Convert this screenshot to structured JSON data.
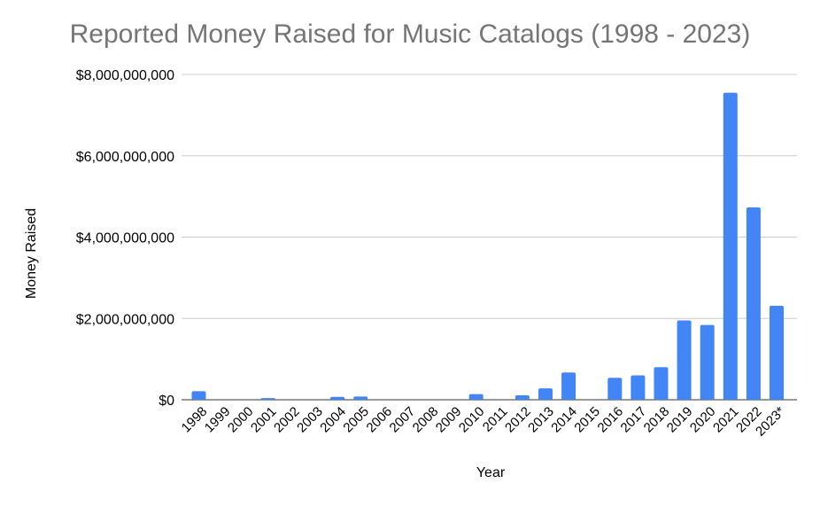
{
  "chart_data": {
    "type": "bar",
    "title": "Reported Money Raised for Music Catalogs (1998 - 2023)",
    "xlabel": "Year",
    "ylabel": "Money Raised",
    "categories": [
      "1998",
      "1999",
      "2000",
      "2001",
      "2002",
      "2003",
      "2004",
      "2005",
      "2006",
      "2007",
      "2008",
      "2009",
      "2010",
      "2011",
      "2012",
      "2013",
      "2014",
      "2015",
      "2016",
      "2017",
      "2018",
      "2019",
      "2020",
      "2021",
      "2022",
      "2023*"
    ],
    "values": [
      210000000,
      0,
      0,
      40000000,
      0,
      0,
      70000000,
      80000000,
      0,
      0,
      0,
      0,
      140000000,
      0,
      110000000,
      280000000,
      670000000,
      0,
      540000000,
      600000000,
      800000000,
      1950000000,
      1840000000,
      7550000000,
      4730000000,
      2310000000
    ],
    "ylim": [
      0,
      8000000000
    ],
    "yticks": [
      0,
      2000000000,
      4000000000,
      6000000000,
      8000000000
    ],
    "ytick_labels": [
      "$0",
      "$2,000,000,000",
      "$4,000,000,000",
      "$6,000,000,000",
      "$8,000,000,000"
    ],
    "grid": true,
    "bar_color": "#4285f4",
    "grid_color": "#cccccc",
    "title_color": "#757575"
  }
}
